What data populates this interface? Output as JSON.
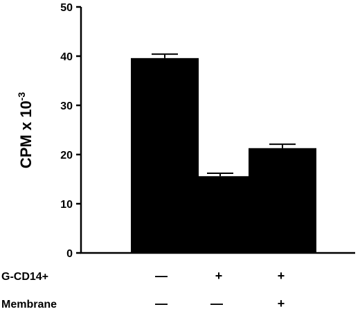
{
  "chart_data": {
    "type": "bar",
    "ylabel": "CPM x 10",
    "ylabel_superscript": "-3",
    "ylim": [
      0,
      50
    ],
    "yticks": [
      0,
      10,
      20,
      30,
      40,
      50
    ],
    "grid": false,
    "values": [
      39.6,
      15.6,
      21.3
    ],
    "errors": [
      0.8,
      0.6,
      0.8
    ],
    "bar_color": "#000000",
    "conditions": [
      {
        "label": "G-CD14+",
        "signs": [
          "—",
          "+",
          "+"
        ]
      },
      {
        "label": "Membrane",
        "signs": [
          "—",
          "—",
          "+"
        ]
      }
    ]
  }
}
